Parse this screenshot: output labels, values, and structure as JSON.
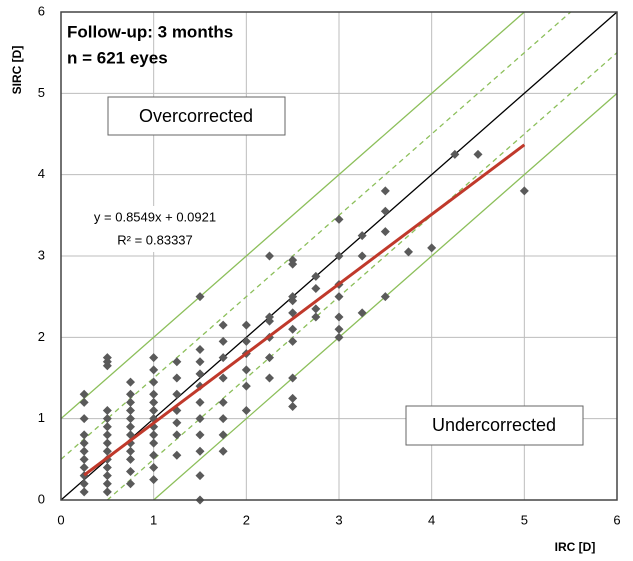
{
  "chart_data": {
    "type": "scatter",
    "annotations": [
      "Follow-up: 3 months",
      "n = 621 eyes",
      "Overcorrected",
      "Undercorrected",
      "y = 0.8549x + 0.0921",
      "R² = 0.83337"
    ],
    "x_label": "IRC [D]",
    "y_label": "SIRC [D]",
    "xlim": [
      0,
      6
    ],
    "ylim": [
      0,
      6
    ],
    "xticks": [
      0,
      1,
      2,
      3,
      4,
      5,
      6
    ],
    "yticks": [
      0,
      1,
      2,
      3,
      4,
      5,
      6
    ],
    "grid": true,
    "color": "#5a5a5a",
    "x": [
      0.25,
      0.25,
      0.25,
      0.25,
      0.25,
      0.25,
      0.25,
      0.25,
      0.25,
      0.25,
      0.25,
      0.5,
      0.5,
      0.5,
      0.5,
      0.5,
      0.5,
      0.5,
      0.5,
      0.5,
      0.5,
      0.5,
      0.5,
      0.5,
      0.5,
      0.75,
      0.75,
      0.75,
      0.75,
      0.75,
      0.75,
      0.75,
      0.75,
      0.75,
      0.75,
      0.75,
      0.75,
      1,
      1,
      1,
      1,
      1,
      1,
      1,
      1,
      1,
      1,
      1,
      1,
      1,
      1.25,
      1.25,
      1.25,
      1.25,
      1.25,
      1.25,
      1.25,
      1.5,
      1.5,
      1.5,
      1.5,
      1.5,
      1.5,
      1.5,
      1.5,
      1.5,
      1.5,
      1.5,
      1.75,
      1.75,
      1.75,
      1.75,
      1.75,
      1.75,
      1.75,
      1.75,
      2,
      2,
      2,
      2,
      2,
      2,
      2.25,
      2.25,
      2.25,
      2.25,
      2.25,
      2.25,
      2.5,
      2.5,
      2.5,
      2.5,
      2.5,
      2.5,
      2.5,
      2.5,
      2.5,
      2.5,
      2.75,
      2.75,
      2.75,
      2.75,
      3,
      3,
      3,
      3,
      3,
      3,
      3,
      3.25,
      3.25,
      3.25,
      3.5,
      3.5,
      3.5,
      3.5,
      3.75,
      4,
      4.25,
      4.5,
      5
    ],
    "values": [
      0.1,
      0.2,
      0.3,
      0.4,
      0.5,
      0.6,
      0.7,
      0.8,
      1.0,
      1.2,
      1.3,
      0.1,
      0.2,
      0.3,
      0.4,
      0.5,
      0.6,
      0.7,
      0.8,
      0.9,
      1.0,
      1.1,
      1.65,
      1.7,
      1.75,
      0.2,
      0.35,
      0.5,
      0.6,
      0.7,
      0.8,
      0.9,
      1.0,
      1.1,
      1.2,
      1.3,
      1.45,
      0.25,
      0.4,
      0.55,
      0.7,
      0.8,
      0.9,
      1.0,
      1.1,
      1.2,
      1.3,
      1.45,
      1.6,
      1.75,
      0.55,
      0.8,
      0.95,
      1.1,
      1.3,
      1.5,
      1.7,
      0.0,
      0.3,
      0.6,
      0.8,
      1.0,
      1.2,
      1.4,
      1.55,
      1.7,
      1.85,
      2.5,
      0.6,
      0.8,
      1.0,
      1.2,
      1.5,
      1.75,
      1.95,
      2.15,
      1.1,
      1.4,
      1.6,
      1.8,
      1.95,
      2.15,
      1.5,
      1.75,
      2.0,
      2.2,
      2.25,
      3.0,
      1.15,
      1.25,
      1.5,
      1.95,
      2.1,
      2.3,
      2.45,
      2.5,
      2.9,
      2.95,
      2.25,
      2.35,
      2.6,
      2.75,
      2.0,
      2.1,
      2.25,
      2.5,
      2.65,
      3.0,
      3.45,
      2.3,
      3.0,
      3.25,
      2.5,
      3.3,
      3.55,
      3.8,
      3.05,
      3.1,
      4.25,
      4.25,
      3.8
    ],
    "reference_lines": [
      {
        "offset": 0,
        "color": "#000000",
        "dashed": false
      },
      {
        "offset": 0.5,
        "color": "#8cbf5a",
        "dashed": true
      },
      {
        "offset": -0.5,
        "color": "#8cbf5a",
        "dashed": true
      },
      {
        "offset": 1,
        "color": "#8cbf5a",
        "dashed": false
      },
      {
        "offset": -1,
        "color": "#8cbf5a",
        "dashed": false
      }
    ],
    "trendline": {
      "slope": 0.8549,
      "intercept": 0.0921,
      "x_range": [
        0.25,
        5
      ],
      "color": "#c0392b"
    }
  }
}
